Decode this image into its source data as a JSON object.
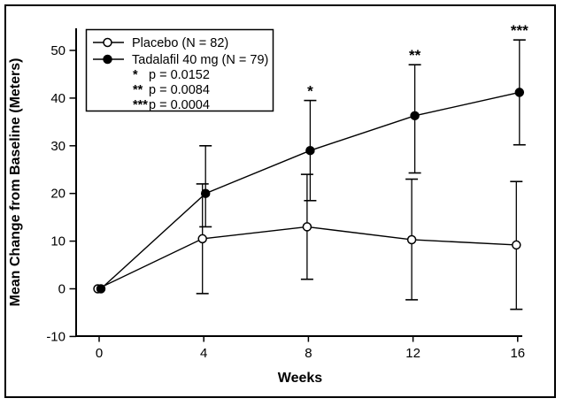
{
  "figure": {
    "background": "#ffffff",
    "frame_color": "#000000",
    "line_color": "#000000"
  },
  "chart_data": {
    "type": "line",
    "title": "",
    "xlabel": "Weeks",
    "ylabel": "Mean Change from Baseline (Meters)",
    "x": [
      0,
      4,
      8,
      12,
      16
    ],
    "xticks": [
      0,
      4,
      8,
      12,
      16
    ],
    "yticks": [
      -10,
      0,
      10,
      20,
      30,
      40,
      50
    ],
    "xlim": [
      -1,
      17
    ],
    "ylim": [
      -10,
      50
    ],
    "grid": false,
    "legend_position": "top-left",
    "series": [
      {
        "name": "Placebo (N = 82)",
        "marker": "open-circle",
        "color": "#000000",
        "values": [
          0,
          10.5,
          13,
          10.3,
          9.2
        ],
        "err_lo": [
          null,
          -1,
          2,
          -2.3,
          -4.3
        ],
        "err_hi": [
          null,
          22,
          24,
          23,
          22.5
        ]
      },
      {
        "name": "Tadalafil 40 mg (N = 79)",
        "marker": "filled-circle",
        "color": "#000000",
        "values": [
          0,
          20,
          29,
          36.3,
          41.2
        ],
        "err_lo": [
          null,
          13,
          18.5,
          24.3,
          30.2
        ],
        "err_hi": [
          null,
          30,
          39.5,
          47,
          52.2
        ]
      }
    ],
    "significance": [
      {
        "week": 8,
        "label": "*"
      },
      {
        "week": 12,
        "label": "**"
      },
      {
        "week": 16,
        "label": "***"
      }
    ],
    "stats_notes": [
      {
        "marker": "*",
        "text": "p = 0.0152"
      },
      {
        "marker": "**",
        "text": "p = 0.0084"
      },
      {
        "marker": "***",
        "text": "p = 0.0004"
      }
    ]
  }
}
